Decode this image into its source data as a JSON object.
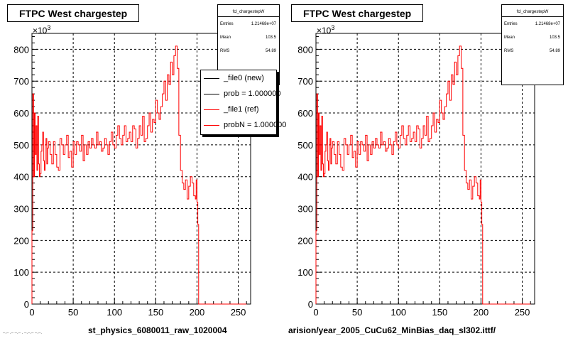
{
  "footer_text": "–.– .– –.– . –.–.– –.–.",
  "chart_data": [
    {
      "type": "line",
      "title": "FTPC West chargestep",
      "xlabel": "st_physics_6080011_raw_1020004",
      "ylabel": "",
      "y_exponent_label": "×10",
      "y_exponent_sup": "3",
      "xlim": [
        0,
        265
      ],
      "ylim": [
        0,
        850
      ],
      "xticks": [
        0,
        50,
        100,
        150,
        200,
        250
      ],
      "yticks": [
        0,
        100,
        200,
        300,
        400,
        500,
        600,
        700,
        800
      ],
      "grid": true,
      "stats": {
        "name": "fcl_chargestepW",
        "rows": [
          {
            "label": "Entries",
            "value": "1.21468e+07"
          },
          {
            "label": "Mean",
            "value": "103.5"
          },
          {
            "label": "RMS",
            "value": "54.89"
          }
        ]
      },
      "legend": {
        "placement": "top-right",
        "entries": [
          {
            "label": "_file0 (new)",
            "color": "#000000"
          },
          {
            "label": "prob = 1.000000",
            "color": "#000000"
          },
          {
            "label": "_file1 (ref)",
            "color": "#ff0000"
          },
          {
            "label": "probN = 1.000000",
            "color": "#ff0000"
          }
        ]
      },
      "series": [
        {
          "color": "#ff0000",
          "x": [
            0,
            1,
            2,
            3,
            4,
            5,
            6,
            7,
            8,
            9,
            10,
            11,
            12,
            13,
            14,
            15,
            16,
            17,
            18,
            19,
            20,
            22,
            24,
            26,
            28,
            30,
            32,
            34,
            36,
            38,
            40,
            42,
            44,
            46,
            48,
            50,
            52,
            54,
            56,
            58,
            60,
            62,
            64,
            66,
            68,
            70,
            72,
            74,
            76,
            78,
            80,
            82,
            84,
            86,
            88,
            90,
            92,
            94,
            96,
            98,
            100,
            102,
            104,
            106,
            108,
            110,
            112,
            114,
            116,
            118,
            120,
            122,
            124,
            126,
            128,
            130,
            132,
            134,
            136,
            138,
            140,
            142,
            144,
            146,
            148,
            150,
            152,
            154,
            156,
            158,
            160,
            162,
            164,
            166,
            168,
            170,
            172,
            174,
            176,
            178,
            180,
            182,
            184,
            186,
            188,
            190,
            192,
            194,
            196,
            198,
            199,
            200,
            201,
            202,
            203,
            205,
            210,
            220,
            240,
            260
          ],
          "y": [
            230,
            660,
            400,
            600,
            470,
            560,
            420,
            590,
            440,
            400,
            410,
            480,
            500,
            540,
            450,
            420,
            500,
            520,
            440,
            490,
            510,
            470,
            440,
            510,
            470,
            430,
            420,
            520,
            500,
            470,
            500,
            530,
            460,
            480,
            430,
            510,
            470,
            510,
            500,
            480,
            530,
            450,
            500,
            470,
            510,
            490,
            520,
            500,
            490,
            540,
            500,
            510,
            480,
            490,
            520,
            500,
            470,
            510,
            540,
            500,
            490,
            530,
            560,
            520,
            500,
            530,
            560,
            510,
            520,
            540,
            510,
            560,
            550,
            490,
            520,
            560,
            530,
            590,
            510,
            520,
            560,
            600,
            540,
            580,
            570,
            640,
            600,
            580,
            620,
            660,
            700,
            640,
            720,
            690,
            760,
            720,
            780,
            810,
            740,
            530,
            420,
            380,
            360,
            390,
            330,
            370,
            400,
            380,
            340,
            330,
            390,
            320,
            250,
            0,
            0,
            0,
            0,
            0,
            0,
            0
          ]
        }
      ]
    },
    {
      "type": "line",
      "title": "FTPC West chargestep",
      "xlabel": "arision/year_2005_CuCu62_MinBias_daq_sl302.ittf/",
      "ylabel": "",
      "y_exponent_label": "×10",
      "y_exponent_sup": "3",
      "xlim": [
        0,
        265
      ],
      "ylim": [
        0,
        850
      ],
      "xticks": [
        0,
        50,
        100,
        150,
        200,
        250
      ],
      "yticks": [
        0,
        100,
        200,
        300,
        400,
        500,
        600,
        700,
        800
      ],
      "grid": true,
      "stats": {
        "name": "fcl_chargestepW",
        "rows": [
          {
            "label": "Entries",
            "value": "1.21468e+07"
          },
          {
            "label": "Mean",
            "value": "103.5"
          },
          {
            "label": "RMS",
            "value": "54.89"
          }
        ]
      },
      "series": [
        {
          "color": "#ff0000",
          "x": [
            0,
            1,
            2,
            3,
            4,
            5,
            6,
            7,
            8,
            9,
            10,
            11,
            12,
            13,
            14,
            15,
            16,
            17,
            18,
            19,
            20,
            22,
            24,
            26,
            28,
            30,
            32,
            34,
            36,
            38,
            40,
            42,
            44,
            46,
            48,
            50,
            52,
            54,
            56,
            58,
            60,
            62,
            64,
            66,
            68,
            70,
            72,
            74,
            76,
            78,
            80,
            82,
            84,
            86,
            88,
            90,
            92,
            94,
            96,
            98,
            100,
            102,
            104,
            106,
            108,
            110,
            112,
            114,
            116,
            118,
            120,
            122,
            124,
            126,
            128,
            130,
            132,
            134,
            136,
            138,
            140,
            142,
            144,
            146,
            148,
            150,
            152,
            154,
            156,
            158,
            160,
            162,
            164,
            166,
            168,
            170,
            172,
            174,
            176,
            178,
            180,
            182,
            184,
            186,
            188,
            190,
            192,
            194,
            196,
            198,
            199,
            200,
            201,
            202,
            203,
            205,
            210,
            220,
            240,
            260
          ],
          "y": [
            230,
            660,
            400,
            600,
            470,
            560,
            420,
            590,
            440,
            400,
            410,
            480,
            500,
            540,
            450,
            420,
            500,
            520,
            440,
            490,
            510,
            470,
            440,
            510,
            470,
            430,
            420,
            520,
            500,
            470,
            500,
            530,
            460,
            480,
            430,
            510,
            470,
            510,
            500,
            480,
            530,
            450,
            500,
            470,
            510,
            490,
            520,
            500,
            490,
            540,
            500,
            510,
            480,
            490,
            520,
            500,
            470,
            510,
            540,
            500,
            490,
            530,
            560,
            520,
            500,
            530,
            560,
            510,
            520,
            540,
            510,
            560,
            550,
            490,
            520,
            560,
            530,
            590,
            510,
            520,
            560,
            600,
            540,
            580,
            570,
            640,
            600,
            580,
            620,
            660,
            700,
            640,
            720,
            690,
            760,
            720,
            780,
            810,
            740,
            530,
            420,
            380,
            360,
            390,
            330,
            370,
            400,
            380,
            340,
            330,
            390,
            320,
            250,
            0,
            0,
            0,
            0,
            0,
            0,
            0
          ]
        }
      ]
    }
  ]
}
